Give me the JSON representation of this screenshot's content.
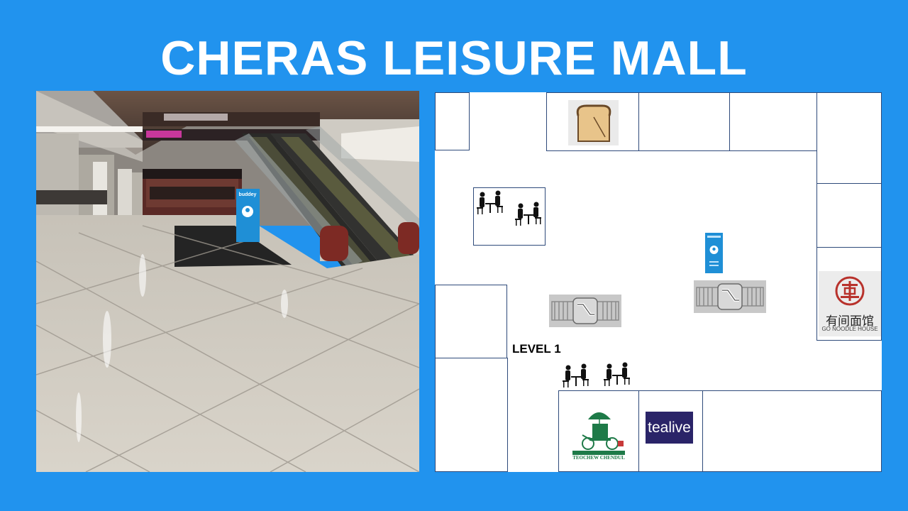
{
  "title": "CHERAS LEISURE MALL",
  "map": {
    "level_label": "LEVEL 1",
    "icons": {
      "bakery": "bread-icon",
      "seating": "dining-tables-icon",
      "escalator": "escalator-icon",
      "beacon": "buddey-beacon-icon"
    },
    "shops": {
      "tealive": "tealive",
      "noodle_house_cn": "有间面馆",
      "noodle_house_en": "GO NOODLE HOUSE",
      "chendul_name": "TEOCHEW CHENDUL"
    }
  },
  "photo": {
    "beacon_label": "buddey"
  },
  "colors": {
    "background": "#2193ee",
    "tealive": "#2a2468",
    "beacon": "#1f8fd6",
    "room_border": "#2e4a7a"
  }
}
